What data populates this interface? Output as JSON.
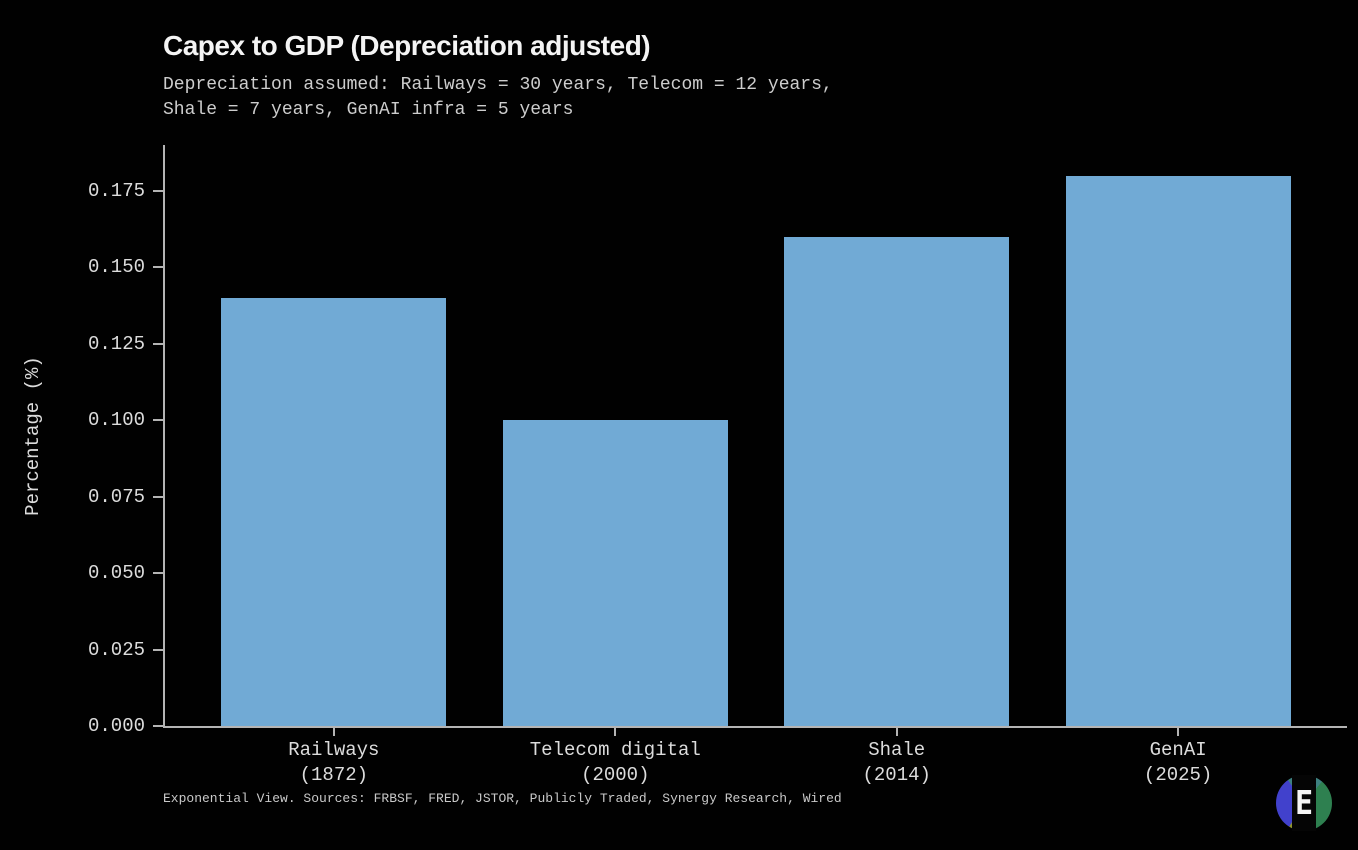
{
  "header": {
    "title": "Capex to GDP (Depreciation adjusted)",
    "subtitle": "Depreciation assumed: Railways = 30 years, Telecom = 12 years,\nShale = 7 years, GenAI infra = 5 years"
  },
  "footer": {
    "source_text": "Exponential View. Sources: FRBSF, FRED, JSTOR, Publicly Traded, Synergy Research, Wired",
    "logo_letter": "E"
  },
  "colors": {
    "background": "#010101",
    "bar": "#71aad5",
    "axis": "#b4b4b4",
    "tick_text": "#dcdcdc",
    "logo_blue": "#4141cc",
    "logo_green": "#2e8050",
    "logo_teal": "#3d8080",
    "logo_olive": "#8f9430"
  },
  "chart_data": {
    "type": "bar",
    "title": "Capex to GDP (Depreciation adjusted)",
    "subtitle": "Depreciation assumed: Railways = 30 years, Telecom = 12 years, Shale = 7 years, GenAI infra = 5 years",
    "categories": [
      "Railways",
      "Telecom digital",
      "Shale",
      "GenAI"
    ],
    "category_sublabels": [
      "(1872)",
      "(2000)",
      "(2014)",
      "(2025)"
    ],
    "values": [
      0.14,
      0.1,
      0.16,
      0.18
    ],
    "xlabel": "",
    "ylabel": "Percentage (%)",
    "ylim": [
      0,
      0.19
    ],
    "xlim": [
      -0.6,
      3.6
    ],
    "yticks": [
      0,
      0.025,
      0.05,
      0.075,
      0.1,
      0.125,
      0.15,
      0.175
    ],
    "ytick_labels": [
      "0.000",
      "0.025",
      "0.050",
      "0.075",
      "0.100",
      "0.125",
      "0.150",
      "0.175"
    ],
    "bar_color": "#71aad5",
    "bar_width_ratio": 0.8,
    "grid": false,
    "legend": false,
    "annotation": "Exponential View. Sources: FRBSF, FRED, JSTOR, Publicly Traded, Synergy Research, Wired"
  }
}
